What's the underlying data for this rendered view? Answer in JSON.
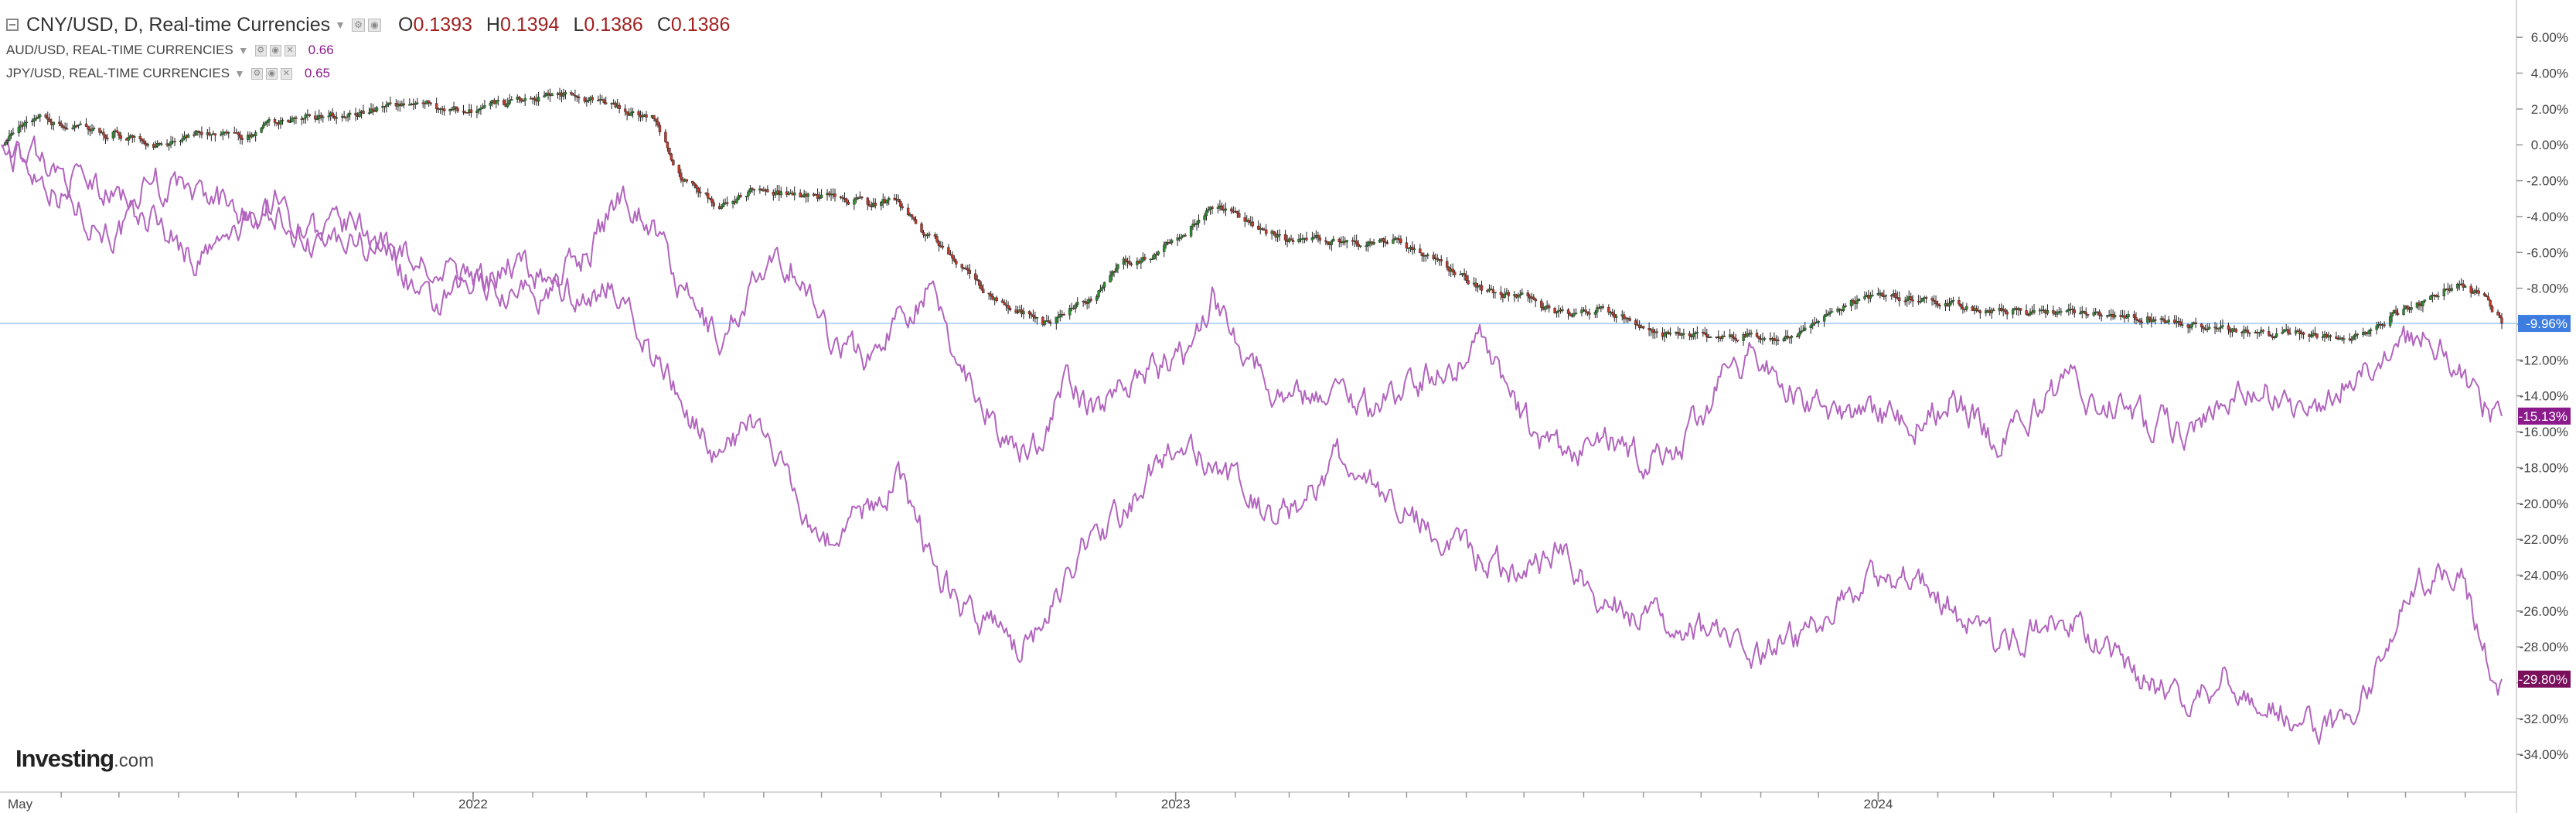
{
  "legend": {
    "main": {
      "title": "CNY/USD, D, Real-time Currencies",
      "open_key": "O",
      "open": "0.1393",
      "high_key": "H",
      "high": "0.1394",
      "low_key": "L",
      "low": "0.1386",
      "close_key": "C",
      "close": "0.1386"
    },
    "compare": [
      {
        "label": "AUD/USD, REAL-TIME CURRENCIES",
        "value": "0.66"
      },
      {
        "label": "JPY/USD, REAL-TIME CURRENCIES",
        "value": "0.65"
      }
    ]
  },
  "logo": {
    "brand": "Investing",
    "suffix": ".com"
  },
  "colors": {
    "candle_up": "#2e8b2e",
    "candle_down": "#c0392b",
    "compare_line": "#b265be",
    "last_price_line": "#b3d4ff",
    "badge_cny": "#3d7de0",
    "badge_aud": "#8b1a8b",
    "badge_jpy": "#7a0f5c",
    "grid_axis": "#cccccc"
  },
  "chart_data": {
    "type": "line",
    "chart_kind": "percent comparison (candlestick main series + 2 line comparisons)",
    "x_tick_labels": [
      "May",
      "2022",
      "2023",
      "2024"
    ],
    "x_ticks": [
      "2021-05",
      "2022-01",
      "2023-01",
      "2024-01"
    ],
    "x_range": [
      "2021-05-01",
      "2024-11-20"
    ],
    "y_unit": "%",
    "y_tick_labels": [
      "6.00%",
      "4.00%",
      "2.00%",
      "0.00%",
      "-2.00%",
      "-4.00%",
      "-6.00%",
      "-8.00%",
      "-10.00%",
      "-12.00%",
      "-14.00%",
      "-16.00%",
      "-18.00%",
      "-20.00%",
      "-22.00%",
      "-24.00%",
      "-26.00%",
      "-28.00%",
      "-30.00%",
      "-32.00%",
      "-34.00%"
    ],
    "ylim": [
      -35.5,
      7
    ],
    "y_axis_side": "right",
    "grid": false,
    "last_value_badges": [
      {
        "series": "CNY/USD",
        "label": "-9.96%",
        "value": -9.96
      },
      {
        "series": "AUD/USD",
        "label": "-15.13%",
        "value": -15.13
      },
      {
        "series": "JPY/USD",
        "label": "-29.80%",
        "value": -29.8
      }
    ],
    "series": [
      {
        "name": "CNY/USD",
        "style": "candlestick",
        "x": [
          "2021-05-01",
          "2021-05-20",
          "2021-06-10",
          "2021-06-30",
          "2021-07-20",
          "2021-08-10",
          "2021-09-01",
          "2021-09-20",
          "2021-10-10",
          "2021-11-01",
          "2021-11-20",
          "2021-12-10",
          "2022-01-01",
          "2022-01-20",
          "2022-02-10",
          "2022-03-01",
          "2022-03-20",
          "2022-04-05",
          "2022-04-20",
          "2022-05-10",
          "2022-05-25",
          "2022-06-15",
          "2022-07-05",
          "2022-07-25",
          "2022-08-10",
          "2022-08-25",
          "2022-09-10",
          "2022-09-25",
          "2022-10-10",
          "2022-10-25",
          "2022-11-05",
          "2022-11-20",
          "2022-12-05",
          "2022-12-20",
          "2023-01-05",
          "2023-01-20",
          "2023-02-05",
          "2023-02-20",
          "2023-03-10",
          "2023-03-25",
          "2023-04-10",
          "2023-04-25",
          "2023-05-10",
          "2023-05-25",
          "2023-06-10",
          "2023-06-30",
          "2023-07-20",
          "2023-08-10",
          "2023-08-30",
          "2023-09-20",
          "2023-10-10",
          "2023-10-30",
          "2023-11-20",
          "2023-12-10",
          "2023-12-30",
          "2024-01-20",
          "2024-02-10",
          "2024-03-01",
          "2024-03-20",
          "2024-04-10",
          "2024-05-01",
          "2024-05-20",
          "2024-06-10",
          "2024-06-30",
          "2024-07-20",
          "2024-08-10",
          "2024-08-30",
          "2024-09-20",
          "2024-10-10",
          "2024-10-30",
          "2024-11-10",
          "2024-11-20"
        ],
        "y": [
          0.0,
          1.5,
          0.8,
          0.5,
          0.0,
          0.8,
          0.4,
          1.2,
          1.6,
          1.8,
          2.3,
          2.2,
          2.0,
          2.4,
          2.8,
          2.6,
          2.0,
          1.5,
          -2.0,
          -3.5,
          -2.5,
          -2.8,
          -3.0,
          -3.3,
          -3.2,
          -5.0,
          -6.5,
          -8.2,
          -9.3,
          -9.8,
          -9.5,
          -8.5,
          -6.5,
          -6.3,
          -5.0,
          -3.5,
          -4.2,
          -5.0,
          -5.5,
          -5.2,
          -5.5,
          -5.4,
          -6.0,
          -7.0,
          -8.2,
          -8.5,
          -9.5,
          -9.0,
          -10.2,
          -10.5,
          -10.8,
          -10.6,
          -10.8,
          -9.0,
          -8.5,
          -8.6,
          -9.0,
          -9.2,
          -9.2,
          -9.3,
          -9.5,
          -9.8,
          -10.0,
          -10.3,
          -10.4,
          -10.6,
          -10.8,
          -9.8,
          -8.7,
          -7.8,
          -8.5,
          -9.96
        ]
      },
      {
        "style": "line",
        "x": [
          "2021-05-01",
          "2021-05-20",
          "2021-06-10",
          "2021-06-30",
          "2021-07-20",
          "2021-08-10",
          "2021-09-01",
          "2021-09-20",
          "2021-10-10",
          "2021-11-01",
          "2021-11-20",
          "2021-12-10",
          "2022-01-01",
          "2022-01-20",
          "2022-02-10",
          "2022-03-01",
          "2022-03-20",
          "2022-04-05",
          "2022-04-20",
          "2022-05-10",
          "2022-05-25",
          "2022-06-15",
          "2022-07-05",
          "2022-07-25",
          "2022-08-10",
          "2022-08-25",
          "2022-09-10",
          "2022-09-25",
          "2022-10-10",
          "2022-10-25",
          "2022-11-05",
          "2022-11-20",
          "2022-12-05",
          "2022-12-20",
          "2023-01-05",
          "2023-01-20",
          "2023-02-05",
          "2023-02-20",
          "2023-03-10",
          "2023-03-25",
          "2023-04-10",
          "2023-04-25",
          "2023-05-10",
          "2023-05-25",
          "2023-06-10",
          "2023-06-30",
          "2023-07-20",
          "2023-08-10",
          "2023-08-30",
          "2023-09-20",
          "2023-10-10",
          "2023-10-30",
          "2023-11-20",
          "2023-12-10",
          "2023-12-30",
          "2024-01-20",
          "2024-02-10",
          "2024-03-01",
          "2024-03-20",
          "2024-04-10",
          "2024-05-01",
          "2024-05-20",
          "2024-06-10",
          "2024-06-30",
          "2024-07-20",
          "2024-08-10",
          "2024-08-30",
          "2024-09-20",
          "2024-10-10",
          "2024-10-30",
          "2024-11-10",
          "2024-11-20"
        ],
        "y": [
          0.0,
          -1.5,
          -3.5,
          -5.0,
          -4.0,
          -6.5,
          -5.0,
          -3.0,
          -5.5,
          -4.5,
          -6.0,
          -9.5,
          -8.0,
          -6.5,
          -7.5,
          -6.0,
          -2.5,
          -4.5,
          -8.5,
          -11.0,
          -8.0,
          -6.5,
          -10.5,
          -12.0,
          -9.5,
          -8.0,
          -12.0,
          -14.5,
          -17.5,
          -16.0,
          -13.0,
          -15.0,
          -13.0,
          -12.5,
          -12.0,
          -8.5,
          -11.0,
          -13.5,
          -14.0,
          -13.5,
          -14.5,
          -14.0,
          -13.0,
          -12.5,
          -10.5,
          -15.5,
          -17.5,
          -16.5,
          -17.5,
          -17.0,
          -13.5,
          -11.5,
          -14.0,
          -15.5,
          -15.0,
          -15.5,
          -14.0,
          -16.5,
          -15.0,
          -13.5,
          -14.5,
          -15.5,
          -16.0,
          -14.0,
          -13.5,
          -15.5,
          -13.0,
          -11.5,
          -10.5,
          -12.5,
          -14.5,
          -15.13
        ]
      },
      {
        "style": "line",
        "x": [
          "2021-05-01",
          "2021-05-20",
          "2021-06-10",
          "2021-06-30",
          "2021-07-20",
          "2021-08-10",
          "2021-09-01",
          "2021-09-20",
          "2021-10-10",
          "2021-11-01",
          "2021-11-20",
          "2021-12-10",
          "2022-01-01",
          "2022-01-20",
          "2022-02-10",
          "2022-03-01",
          "2022-03-20",
          "2022-04-05",
          "2022-04-20",
          "2022-05-10",
          "2022-05-25",
          "2022-06-15",
          "2022-07-05",
          "2022-07-25",
          "2022-08-10",
          "2022-08-25",
          "2022-09-10",
          "2022-09-25",
          "2022-10-10",
          "2022-10-25",
          "2022-11-05",
          "2022-11-20",
          "2022-12-05",
          "2022-12-20",
          "2023-01-05",
          "2023-01-20",
          "2023-02-05",
          "2023-02-20",
          "2023-03-10",
          "2023-03-25",
          "2023-04-10",
          "2023-04-25",
          "2023-05-10",
          "2023-05-25",
          "2023-06-10",
          "2023-06-30",
          "2023-07-20",
          "2023-08-10",
          "2023-08-30",
          "2023-09-20",
          "2023-10-10",
          "2023-10-30",
          "2023-11-20",
          "2023-12-10",
          "2023-12-30",
          "2024-01-20",
          "2024-02-10",
          "2024-03-01",
          "2024-03-20",
          "2024-04-10",
          "2024-05-01",
          "2024-05-20",
          "2024-06-10",
          "2024-06-30",
          "2024-07-20",
          "2024-08-10",
          "2024-08-30",
          "2024-09-20",
          "2024-10-10",
          "2024-10-30",
          "2024-11-10",
          "2024-11-20"
        ],
        "y": [
          0.0,
          -1.0,
          -2.0,
          -3.0,
          -2.0,
          -3.0,
          -3.5,
          -4.0,
          -5.0,
          -5.5,
          -6.0,
          -7.0,
          -7.5,
          -8.0,
          -8.5,
          -8.0,
          -8.0,
          -12.0,
          -14.5,
          -17.5,
          -15.5,
          -19.0,
          -22.0,
          -20.5,
          -18.5,
          -22.5,
          -25.5,
          -27.0,
          -28.0,
          -26.5,
          -24.0,
          -21.5,
          -20.5,
          -18.5,
          -16.5,
          -17.5,
          -19.5,
          -21.0,
          -19.5,
          -17.5,
          -18.0,
          -20.0,
          -21.0,
          -22.5,
          -23.0,
          -24.0,
          -22.5,
          -25.0,
          -26.5,
          -27.0,
          -27.5,
          -28.5,
          -27.5,
          -26.0,
          -24.5,
          -23.5,
          -26.0,
          -27.5,
          -27.0,
          -26.5,
          -28.5,
          -30.0,
          -31.5,
          -29.5,
          -31.0,
          -32.0,
          -33.0,
          -28.0,
          -24.5,
          -23.5,
          -28.0,
          -29.8
        ]
      }
    ]
  }
}
